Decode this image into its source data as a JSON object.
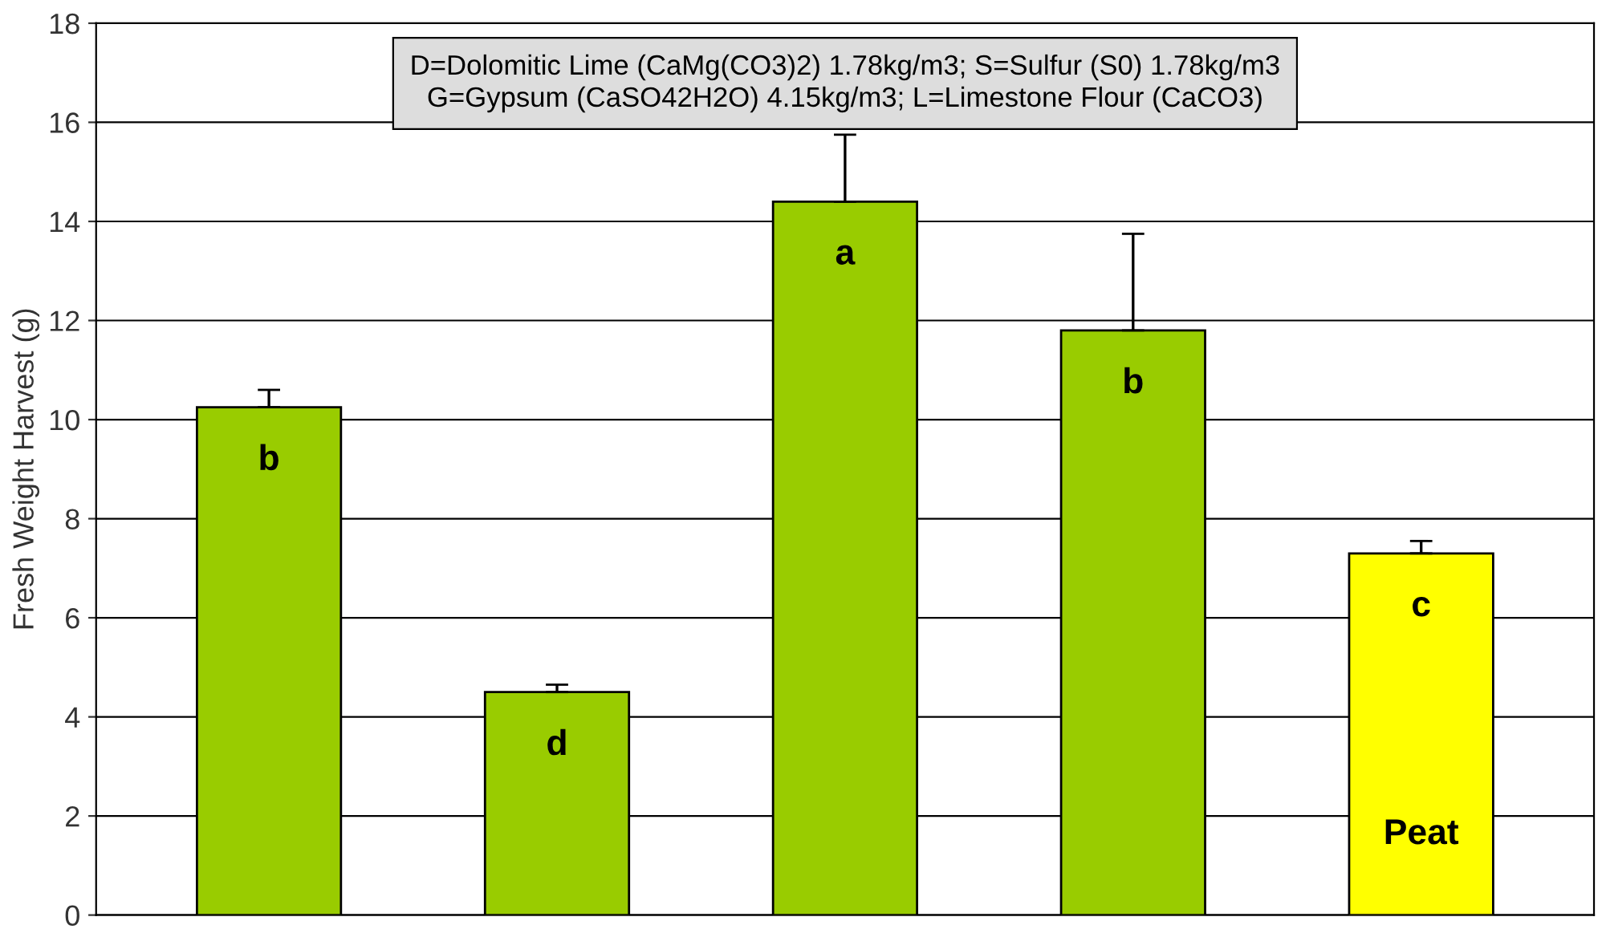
{
  "chart_data": {
    "type": "bar",
    "ylabel": "Fresh Weight Harvest (g)",
    "categories": [
      null,
      null,
      null,
      null,
      null
    ],
    "values": [
      10.25,
      4.5,
      14.4,
      11.8,
      7.3
    ],
    "colors": [
      "#99cc00",
      "#99cc00",
      "#99cc00",
      "#99cc00",
      "#ffff00"
    ],
    "errors": [
      [
        10.25,
        10.6
      ],
      [
        4.5,
        4.65
      ],
      [
        14.4,
        15.75
      ],
      [
        11.8,
        13.75
      ],
      [
        7.3,
        7.55
      ]
    ],
    "ylim": [
      0,
      18
    ],
    "yticks": [
      0,
      2,
      4,
      6,
      8,
      10,
      12,
      14,
      16,
      18
    ],
    "grid": "y",
    "annotations": [
      "D=Dolomitic Lime (CaMg(CO3)2) 1.78kg/m3; S=Sulfur (S0) 1.78kg/m3\nG=Gypsum (CaSO42H2O) 4.15kg/m3; L=Limestone Flour (CaCO3)",
      "b",
      "d",
      "a",
      "b",
      "c",
      "Peat"
    ]
  }
}
